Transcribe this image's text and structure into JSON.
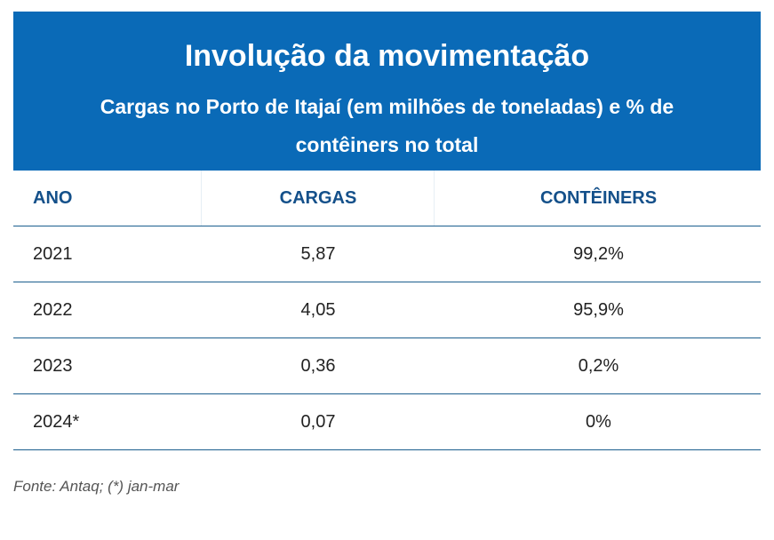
{
  "chart_data": {
    "type": "table",
    "title": "Involução da movimentação",
    "subtitle": "Cargas no Porto de Itajaí (em milhões de toneladas) e % de contêiners no total",
    "columns": [
      "ANO",
      "CARGAS",
      "CONTÊINERS"
    ],
    "rows": [
      [
        "2021",
        "5,87",
        "99,2%"
      ],
      [
        "2022",
        "4,05",
        "95,9%"
      ],
      [
        "2023",
        "0,36",
        "0,2%"
      ],
      [
        "2024*",
        "0,07",
        "0%"
      ]
    ],
    "source": "Fonte: Antaq; (*) jan-mar"
  },
  "colors": {
    "header_bg": "#0a6ab7",
    "header_text": "#ffffff",
    "column_header_text": "#14508a",
    "row_divider": "#1b5e8e"
  }
}
